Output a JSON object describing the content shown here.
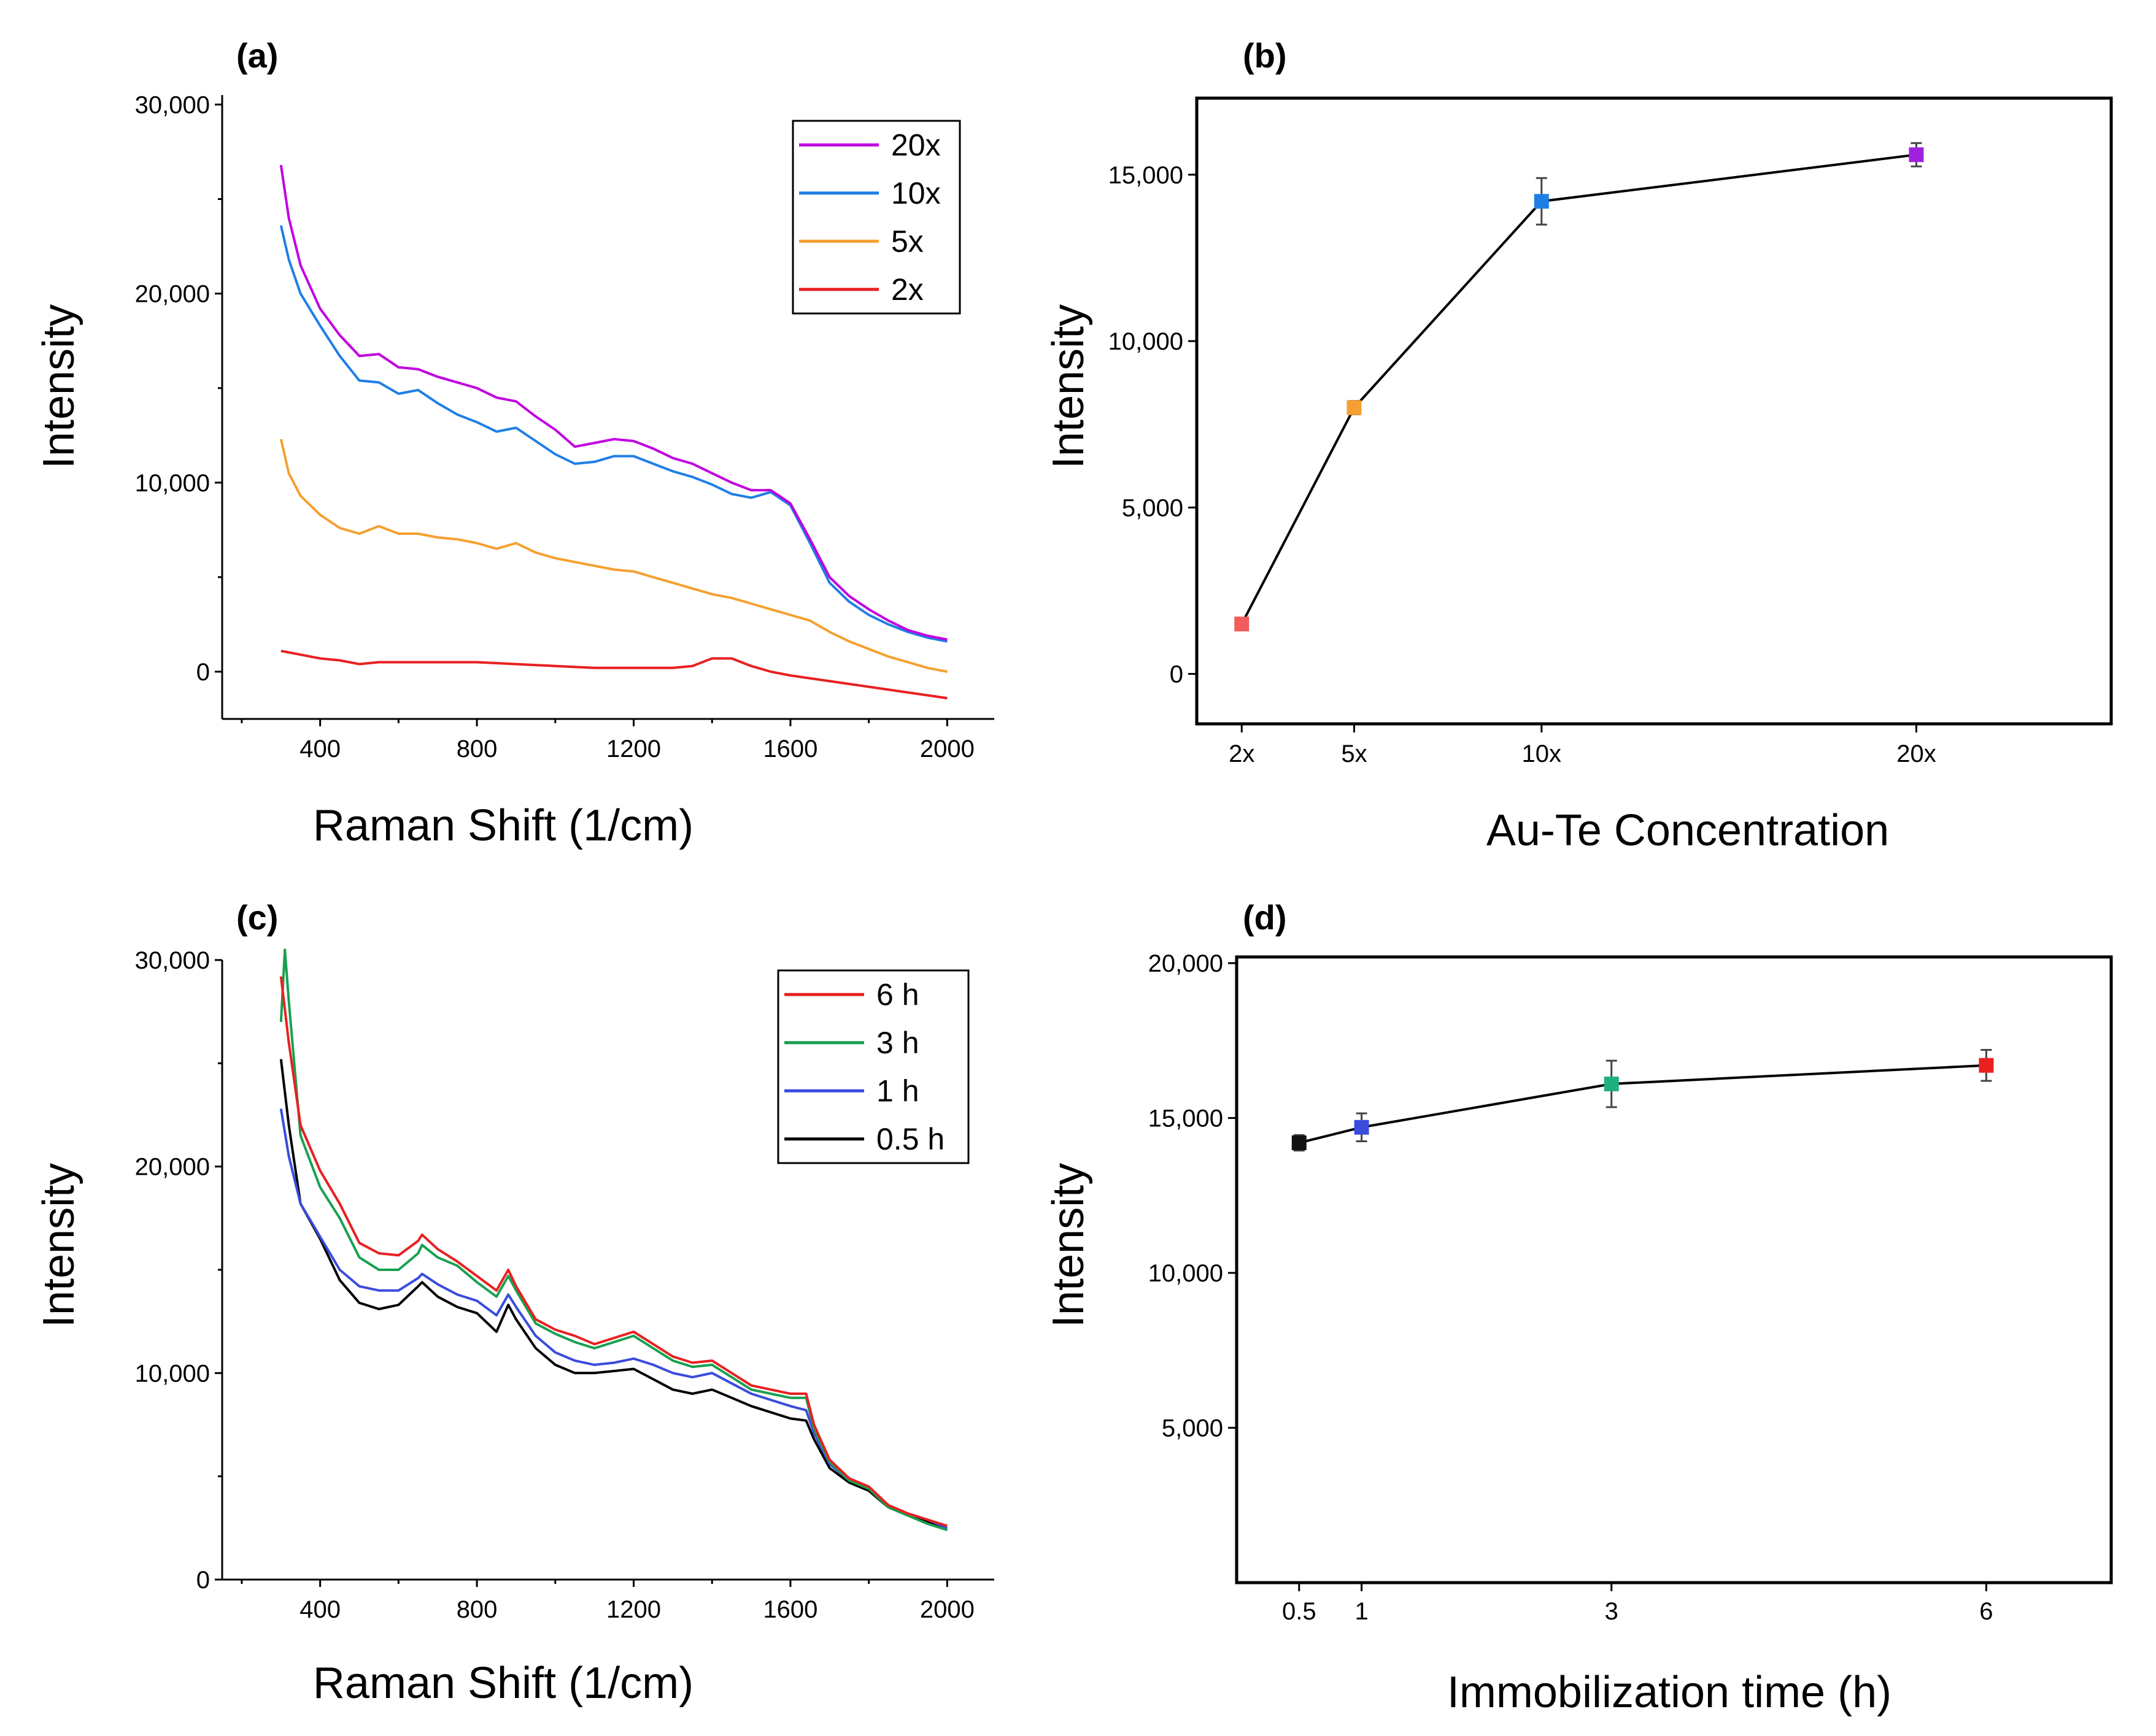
{
  "figure": {
    "panels": [
      "(a)",
      "(b)",
      "(c)",
      "(d)"
    ]
  },
  "chart_data": [
    {
      "panel": "(a)",
      "type": "line",
      "xlabel": "Raman Shift (1/cm)",
      "ylabel": "Intensity",
      "xlim": [
        150,
        2120
      ],
      "ylim": [
        -2500,
        30500
      ],
      "xticks": [
        400,
        800,
        1200,
        1600,
        2000
      ],
      "xtick_labels": [
        "400",
        "800",
        "1200",
        "1600",
        "2000"
      ],
      "yticks": [
        0,
        10000,
        20000,
        30000
      ],
      "ytick_labels": [
        "0",
        "10,000",
        "20,000",
        "30,000"
      ],
      "legend_position": "top-right",
      "series": [
        {
          "name": "20x",
          "color": "#c000e0",
          "x": [
            300,
            320,
            350,
            400,
            450,
            500,
            550,
            600,
            650,
            700,
            750,
            800,
            850,
            900,
            950,
            1000,
            1050,
            1100,
            1150,
            1200,
            1250,
            1300,
            1350,
            1400,
            1450,
            1500,
            1550,
            1600,
            1650,
            1700,
            1750,
            1800,
            1850,
            1900,
            1950,
            2000
          ],
          "y": [
            26800,
            24000,
            21500,
            19200,
            17800,
            16700,
            16800,
            16100,
            16000,
            15600,
            15300,
            15000,
            14500,
            14300,
            13500,
            12800,
            11900,
            12100,
            12300,
            12200,
            11800,
            11300,
            11000,
            10500,
            10000,
            9600,
            9600,
            8900,
            7000,
            5000,
            4000,
            3300,
            2700,
            2200,
            1900,
            1700
          ]
        },
        {
          "name": "10x",
          "color": "#1f7fe6",
          "x": [
            300,
            320,
            350,
            400,
            450,
            500,
            550,
            600,
            650,
            700,
            750,
            800,
            850,
            900,
            950,
            1000,
            1050,
            1100,
            1150,
            1200,
            1250,
            1300,
            1350,
            1400,
            1450,
            1500,
            1550,
            1600,
            1650,
            1700,
            1750,
            1800,
            1850,
            1900,
            1950,
            2000
          ],
          "y": [
            23600,
            21800,
            20000,
            18300,
            16700,
            15400,
            15300,
            14700,
            14900,
            14200,
            13600,
            13200,
            12700,
            12900,
            12200,
            11500,
            11000,
            11100,
            11400,
            11400,
            11000,
            10600,
            10300,
            9900,
            9400,
            9200,
            9500,
            8800,
            6800,
            4700,
            3700,
            3000,
            2500,
            2100,
            1800,
            1600
          ]
        },
        {
          "name": "5x",
          "color": "#f5a030",
          "x": [
            300,
            320,
            350,
            400,
            450,
            500,
            550,
            600,
            650,
            700,
            750,
            800,
            850,
            900,
            950,
            1000,
            1050,
            1100,
            1150,
            1200,
            1250,
            1300,
            1350,
            1400,
            1450,
            1500,
            1550,
            1600,
            1650,
            1700,
            1750,
            1800,
            1850,
            1900,
            1950,
            2000
          ],
          "y": [
            12300,
            10500,
            9300,
            8300,
            7600,
            7300,
            7700,
            7300,
            7300,
            7100,
            7000,
            6800,
            6500,
            6800,
            6300,
            6000,
            5800,
            5600,
            5400,
            5300,
            5000,
            4700,
            4400,
            4100,
            3900,
            3600,
            3300,
            3000,
            2700,
            2100,
            1600,
            1200,
            800,
            500,
            200,
            0
          ]
        },
        {
          "name": "2x",
          "color": "#e82020",
          "x": [
            300,
            350,
            400,
            450,
            500,
            550,
            600,
            700,
            800,
            900,
            1000,
            1100,
            1200,
            1300,
            1350,
            1400,
            1450,
            1500,
            1550,
            1600,
            1700,
            1800,
            1900,
            2000
          ],
          "y": [
            1100,
            900,
            700,
            600,
            400,
            500,
            500,
            500,
            500,
            400,
            300,
            200,
            200,
            200,
            300,
            700,
            700,
            300,
            0,
            -200,
            -500,
            -800,
            -1100,
            -1400
          ]
        }
      ]
    },
    {
      "panel": "(b)",
      "type": "scatter",
      "xlabel": "Au-Te Concentration",
      "ylabel": "Intensity",
      "categories": [
        "2x",
        "5x",
        "10x",
        "20x"
      ],
      "x": [
        2,
        5,
        10,
        20
      ],
      "values": [
        1500,
        8000,
        14200,
        15600
      ],
      "errors": [
        150,
        200,
        700,
        350
      ],
      "point_colors": [
        "#f25c5c",
        "#f5a030",
        "#1f7fe6",
        "#a020e0"
      ],
      "xlim": [
        0.8,
        25.2
      ],
      "ylim": [
        -1500,
        17300
      ],
      "yticks": [
        0,
        5000,
        10000,
        15000
      ],
      "ytick_labels": [
        "0",
        "5,000",
        "10,000",
        "15,000"
      ]
    },
    {
      "panel": "(c)",
      "type": "line",
      "xlabel": "Raman Shift (1/cm)",
      "ylabel": "Intensity",
      "xlim": [
        150,
        2120
      ],
      "ylim": [
        0,
        30000
      ],
      "xticks": [
        400,
        800,
        1200,
        1600,
        2000
      ],
      "xtick_labels": [
        "400",
        "800",
        "1200",
        "1600",
        "2000"
      ],
      "yticks": [
        0,
        10000,
        20000,
        30000
      ],
      "ytick_labels": [
        "0",
        "10,000",
        "20,000",
        "30,000"
      ],
      "legend_position": "top-right",
      "series": [
        {
          "name": "6 h",
          "color": "#e82020",
          "x": [
            300,
            320,
            350,
            400,
            450,
            500,
            550,
            600,
            650,
            660,
            700,
            750,
            800,
            850,
            880,
            900,
            950,
            1000,
            1050,
            1100,
            1150,
            1200,
            1250,
            1300,
            1350,
            1400,
            1450,
            1500,
            1550,
            1600,
            1640,
            1660,
            1700,
            1750,
            1800,
            1850,
            1900,
            1950,
            2000
          ],
          "y": [
            29200,
            26000,
            22000,
            19800,
            18200,
            16300,
            15800,
            15700,
            16400,
            16700,
            16000,
            15400,
            14700,
            14000,
            15000,
            14200,
            12600,
            12100,
            11800,
            11400,
            11700,
            12000,
            11400,
            10800,
            10500,
            10600,
            10000,
            9400,
            9200,
            9000,
            9000,
            7500,
            5800,
            4900,
            4500,
            3600,
            3200,
            2900,
            2600
          ]
        },
        {
          "name": "3 h",
          "color": "#18a050",
          "x": [
            300,
            310,
            320,
            350,
            400,
            450,
            500,
            550,
            600,
            650,
            660,
            700,
            750,
            800,
            850,
            880,
            900,
            950,
            1000,
            1050,
            1100,
            1150,
            1200,
            1250,
            1300,
            1350,
            1400,
            1450,
            1500,
            1550,
            1600,
            1640,
            1660,
            1700,
            1750,
            1800,
            1850,
            1900,
            1950,
            2000
          ],
          "y": [
            27000,
            30500,
            28000,
            21500,
            19000,
            17500,
            15600,
            15000,
            15000,
            15800,
            16200,
            15600,
            15200,
            14400,
            13700,
            14700,
            14000,
            12400,
            11900,
            11500,
            11200,
            11500,
            11800,
            11200,
            10600,
            10300,
            10400,
            9800,
            9200,
            9000,
            8800,
            8800,
            7300,
            5700,
            4800,
            4400,
            3500,
            3100,
            2700,
            2400
          ]
        },
        {
          "name": "1 h",
          "color": "#3a4cdc",
          "x": [
            300,
            320,
            350,
            400,
            450,
            500,
            550,
            600,
            650,
            660,
            700,
            750,
            800,
            850,
            880,
            900,
            950,
            1000,
            1050,
            1100,
            1150,
            1200,
            1250,
            1300,
            1350,
            1400,
            1450,
            1500,
            1550,
            1600,
            1640,
            1660,
            1700,
            1750,
            1800,
            1850,
            1900,
            1950,
            2000
          ],
          "y": [
            22800,
            20500,
            18200,
            16600,
            15000,
            14200,
            14000,
            14000,
            14600,
            14800,
            14300,
            13800,
            13500,
            12800,
            13800,
            13200,
            11800,
            11000,
            10600,
            10400,
            10500,
            10700,
            10400,
            10000,
            9800,
            10000,
            9500,
            9000,
            8700,
            8400,
            8200,
            7100,
            5600,
            4800,
            4400,
            3600,
            3200,
            2900,
            2500
          ]
        },
        {
          "name": "0.5 h",
          "color": "#000000",
          "x": [
            300,
            320,
            350,
            400,
            450,
            500,
            550,
            600,
            650,
            660,
            700,
            750,
            800,
            850,
            880,
            900,
            950,
            1000,
            1050,
            1100,
            1150,
            1200,
            1250,
            1300,
            1350,
            1400,
            1450,
            1500,
            1550,
            1600,
            1640,
            1660,
            1700,
            1750,
            1800,
            1850,
            1900,
            1950,
            2000
          ],
          "y": [
            25200,
            22000,
            18200,
            16500,
            14500,
            13400,
            13100,
            13300,
            14200,
            14400,
            13700,
            13200,
            12900,
            12000,
            13300,
            12600,
            11200,
            10400,
            10000,
            10000,
            10100,
            10200,
            9700,
            9200,
            9000,
            9200,
            8800,
            8400,
            8100,
            7800,
            7700,
            6800,
            5400,
            4700,
            4300,
            3500,
            3100,
            2800,
            2400
          ]
        }
      ]
    },
    {
      "panel": "(d)",
      "type": "scatter",
      "xlabel": "Immobilization time (h)",
      "ylabel": "Intensity",
      "categories": [
        "0.5",
        "1",
        "3",
        "6"
      ],
      "x": [
        0.5,
        1,
        3,
        6
      ],
      "values": [
        14200,
        14700,
        16100,
        16700
      ],
      "errors": [
        250,
        450,
        750,
        500
      ],
      "point_colors": [
        "#111111",
        "#3a4cdc",
        "#20b080",
        "#e82020"
      ],
      "xlim": [
        0,
        7
      ],
      "ylim": [
        0,
        20200
      ],
      "yticks": [
        5000,
        10000,
        15000,
        20000
      ],
      "ytick_labels": [
        "5,000",
        "10,000",
        "15,000",
        "20,000"
      ]
    }
  ]
}
